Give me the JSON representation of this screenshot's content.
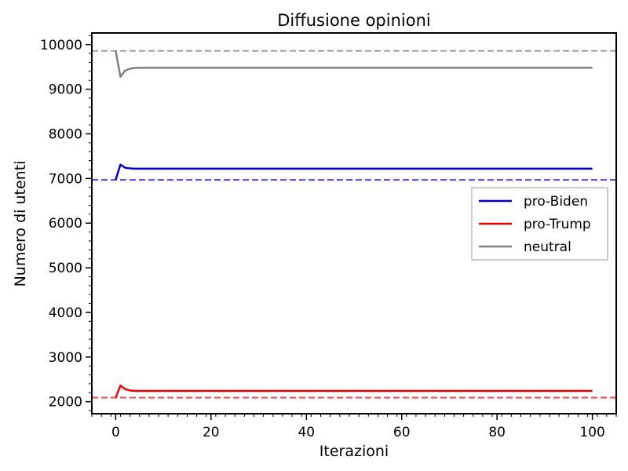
{
  "chart_data": {
    "type": "line",
    "title": "Diffusione opinioni",
    "xlabel": "Iterazioni",
    "ylabel": "Numero di utenti",
    "xlim": [
      -5,
      105
    ],
    "ylim": [
      1730,
      10260
    ],
    "x_ticks": [
      0,
      20,
      40,
      60,
      80,
      100
    ],
    "x_minor_step": 2,
    "y_ticks": [
      2000,
      3000,
      4000,
      5000,
      6000,
      7000,
      8000,
      9000,
      10000
    ],
    "y_minor_step": 200,
    "grid": false,
    "legend_position": "center-right",
    "series": [
      {
        "name": "pro-Biden",
        "color": "#0000cc",
        "points": [
          [
            0,
            6970
          ],
          [
            1,
            7310
          ],
          [
            2,
            7240
          ],
          [
            3,
            7225
          ],
          [
            4,
            7220
          ],
          [
            5,
            7220
          ],
          [
            100,
            7220
          ]
        ]
      },
      {
        "name": "pro-Trump",
        "color": "#ee0000",
        "points": [
          [
            0,
            2090
          ],
          [
            1,
            2360
          ],
          [
            2,
            2280
          ],
          [
            3,
            2250
          ],
          [
            4,
            2240
          ],
          [
            5,
            2240
          ],
          [
            100,
            2240
          ]
        ]
      },
      {
        "name": "neutral",
        "color": "#808080",
        "points": [
          [
            0,
            9860
          ],
          [
            1,
            9280
          ],
          [
            2,
            9420
          ],
          [
            3,
            9460
          ],
          [
            4,
            9475
          ],
          [
            5,
            9480
          ],
          [
            100,
            9480
          ]
        ]
      }
    ],
    "reference_lines": [
      {
        "y": 9860,
        "color": "#a0a0a0"
      },
      {
        "y": 6970,
        "color": "#4848e0"
      },
      {
        "y": 2090,
        "color": "#ee4848"
      }
    ]
  }
}
